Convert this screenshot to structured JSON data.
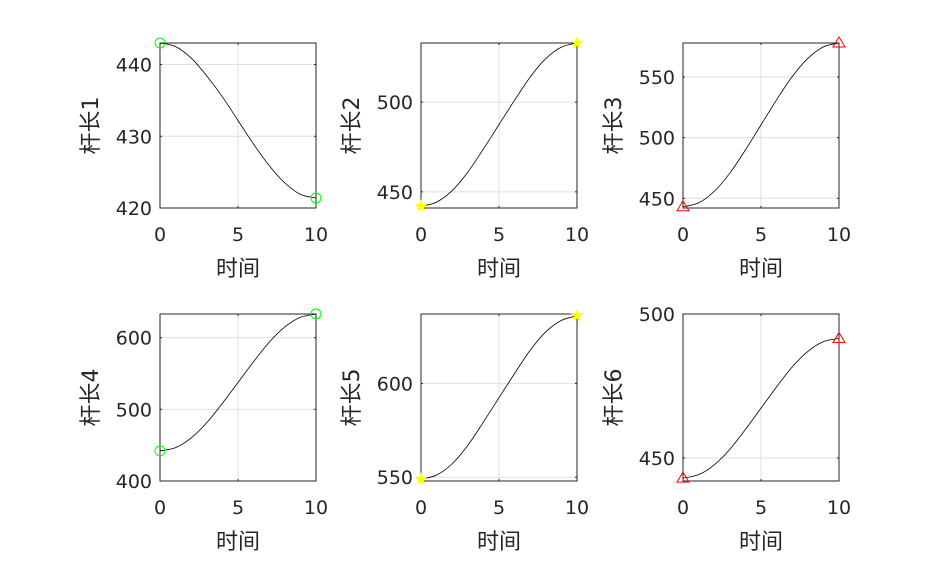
{
  "chart_data": [
    {
      "type": "line",
      "ylabel": "杆长1",
      "xlabel": "时间",
      "xlim": [
        0,
        10
      ],
      "ylim": [
        420,
        443
      ],
      "xticks": [
        "0",
        "5",
        "10"
      ],
      "yticks": [
        420,
        430,
        440
      ],
      "series": [
        {
          "x": [
            0,
            1,
            2,
            3,
            4,
            5,
            6,
            7,
            8,
            9,
            10
          ],
          "y": [
            443,
            442.5,
            440.9,
            438.4,
            435.5,
            432.2,
            428.9,
            425.9,
            423.5,
            421.9,
            421.4
          ]
        }
      ],
      "markers": [
        {
          "x": 0,
          "y": 443
        },
        {
          "x": 10,
          "y": 421.4
        }
      ],
      "marker_shape": "circle",
      "marker_color": "#00ff00",
      "grid": true
    },
    {
      "type": "line",
      "ylabel": "杆长2",
      "xlabel": "时间",
      "xlim": [
        0,
        10
      ],
      "ylim": [
        441,
        533
      ],
      "xticks": [
        "0",
        "5",
        "10"
      ],
      "yticks": [
        450,
        500
      ],
      "series": [
        {
          "x": [
            0,
            1,
            2,
            3,
            4,
            5,
            6,
            7,
            8,
            9,
            10
          ],
          "y": [
            442,
            444.3,
            450.7,
            461,
            473.9,
            487.5,
            501.1,
            514,
            524.3,
            530.7,
            533
          ]
        }
      ],
      "markers": [
        {
          "x": 0,
          "y": 442
        },
        {
          "x": 10,
          "y": 533
        }
      ],
      "marker_shape": "star",
      "marker_color": "#ffff00",
      "grid": true
    },
    {
      "type": "line",
      "ylabel": "杆长3",
      "xlabel": "时间",
      "xlim": [
        0,
        10
      ],
      "ylim": [
        442,
        578
      ],
      "xticks": [
        "0",
        "5",
        "10"
      ],
      "yticks": [
        450,
        500,
        550
      ],
      "series": [
        {
          "x": [
            0,
            1,
            2,
            3,
            4,
            5,
            6,
            7,
            8,
            9,
            10
          ],
          "y": [
            443,
            446.2,
            455.7,
            470.7,
            489.8,
            510.5,
            531.2,
            550.3,
            565.3,
            574.8,
            578
          ]
        }
      ],
      "markers": [
        {
          "x": 0,
          "y": 443
        },
        {
          "x": 10,
          "y": 578
        }
      ],
      "marker_shape": "triangle",
      "marker_color": "#ff0000",
      "grid": true
    },
    {
      "type": "line",
      "ylabel": "杆长4",
      "xlabel": "时间",
      "xlim": [
        0,
        10
      ],
      "ylim": [
        400,
        633
      ],
      "xticks": [
        "0",
        "5",
        "10"
      ],
      "yticks": [
        400,
        500,
        600
      ],
      "series": [
        {
          "x": [
            0,
            1,
            2,
            3,
            4,
            5,
            6,
            7,
            8,
            9,
            10
          ],
          "y": [
            442,
            446.6,
            460.1,
            481.4,
            508.5,
            537.5,
            566.5,
            593.6,
            614.9,
            628.4,
            633
          ]
        }
      ],
      "markers": [
        {
          "x": 0,
          "y": 442
        },
        {
          "x": 10,
          "y": 633
        }
      ],
      "marker_shape": "circle",
      "marker_color": "#00ff00",
      "grid": true
    },
    {
      "type": "line",
      "ylabel": "杆长5",
      "xlabel": "时间",
      "xlim": [
        0,
        10
      ],
      "ylim": [
        548,
        637
      ],
      "xticks": [
        "0",
        "5",
        "10"
      ],
      "yticks": [
        550,
        600
      ],
      "series": [
        {
          "x": [
            0,
            1,
            2,
            3,
            4,
            5,
            6,
            7,
            8,
            9,
            10
          ],
          "y": [
            549,
            551.2,
            557.2,
            567,
            579.4,
            592.4,
            605.3,
            617.7,
            627.5,
            633.6,
            636
          ]
        }
      ],
      "markers": [
        {
          "x": 0,
          "y": 549
        },
        {
          "x": 10,
          "y": 636
        }
      ],
      "marker_shape": "star",
      "marker_color": "#ffff00",
      "grid": true
    },
    {
      "type": "line",
      "ylabel": "杆长6",
      "xlabel": "时间",
      "xlim": [
        0,
        10
      ],
      "ylim": [
        442,
        500
      ],
      "xticks": [
        "0",
        "5",
        "10"
      ],
      "yticks": [
        450,
        500
      ],
      "series": [
        {
          "x": [
            0,
            1,
            2,
            3,
            4,
            5,
            6,
            7,
            8,
            9,
            10
          ],
          "y": [
            443,
            444.2,
            447.6,
            453,
            459.9,
            467.3,
            474.7,
            481.6,
            487,
            490.4,
            491.5
          ]
        }
      ],
      "markers": [
        {
          "x": 0,
          "y": 443
        },
        {
          "x": 10,
          "y": 491.5
        }
      ],
      "marker_shape": "triangle",
      "marker_color": "#ff0000",
      "grid": true
    }
  ]
}
